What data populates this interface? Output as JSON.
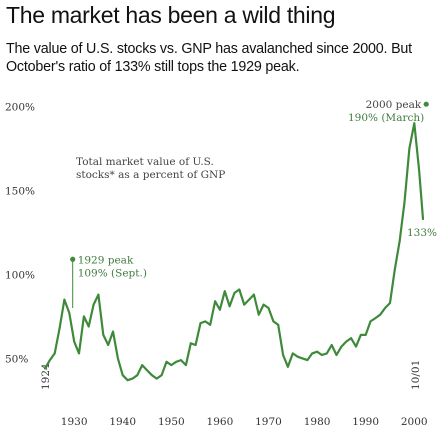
{
  "title": "The market has been a wild thing",
  "subtitle": "The value of U.S. stocks vs. GNP has avalanched since 2000. But October's ratio of 133% still tops the 1929 peak.",
  "chart_data": {
    "type": "line",
    "title": "The market has been a wild thing",
    "subtitle": "The value of U.S. stocks vs. GNP has avalanched since 2000. But October's ratio of 133% still tops the 1929 peak.",
    "xlabel": "",
    "ylabel": "",
    "xlim": [
      1924,
      2001.8
    ],
    "ylim": [
      30,
      205
    ],
    "x_ticks": [
      1930,
      1940,
      1950,
      1960,
      1970,
      1980,
      1990,
      2000
    ],
    "x_tick_labels": [
      "1930",
      "1940",
      "1950",
      "1960",
      "1970",
      "1980",
      "1990",
      "2000"
    ],
    "y_ticks": [
      50,
      100,
      150,
      200
    ],
    "y_tick_labels": [
      "50%",
      "100%",
      "150%",
      "200%"
    ],
    "grid": false,
    "legend": "none",
    "series_label": "Total market value of U.S. stocks* as a percent of GNP",
    "series": [
      {
        "color": "#3f8a3a",
        "x": [
          1924,
          1925,
          1926,
          1927,
          1928,
          1929,
          1930,
          1931,
          1932,
          1933,
          1934,
          1935,
          1936,
          1937,
          1938,
          1939,
          1940,
          1941,
          1942,
          1943,
          1944,
          1945,
          1946,
          1947,
          1948,
          1949,
          1950,
          1951,
          1952,
          1953,
          1954,
          1955,
          1956,
          1957,
          1958,
          1959,
          1960,
          1961,
          1962,
          1963,
          1964,
          1965,
          1966,
          1967,
          1968,
          1969,
          1970,
          1971,
          1972,
          1973,
          1974,
          1975,
          1976,
          1977,
          1978,
          1979,
          1980,
          1981,
          1982,
          1983,
          1984,
          1985,
          1986,
          1987,
          1988,
          1989,
          1990,
          1991,
          1992,
          1993,
          1994,
          1995,
          1996,
          1997,
          1998,
          1999,
          2000,
          2001,
          2001.8
        ],
        "values": [
          44,
          49,
          53,
          68,
          85,
          77,
          60,
          53,
          75,
          69,
          82,
          88,
          64,
          58,
          66,
          50,
          40,
          37,
          38,
          40,
          46,
          43,
          40,
          38,
          40,
          48,
          46,
          48,
          49,
          46,
          59,
          58,
          71,
          72,
          70,
          84,
          79,
          90,
          81,
          89,
          91,
          82,
          85,
          88,
          76,
          82,
          80,
          72,
          70,
          52,
          45,
          53,
          51,
          50,
          49,
          53,
          54,
          52,
          53,
          58,
          52,
          57,
          60,
          62,
          57,
          64,
          64,
          72,
          74,
          76,
          80,
          83,
          103,
          120,
          143,
          175,
          190,
          162,
          133
        ]
      }
    ],
    "annotations": [
      {
        "text": "Total market value of U.S. stocks* as a percent of GNP"
      },
      {
        "text": "1929 peak 109% (Sept.)",
        "x": 1929.7,
        "y": 109
      },
      {
        "text": "2000 peak 190% (March)",
        "x": 2000.2,
        "y": 190
      },
      {
        "text": "133%",
        "x": 2001.8,
        "y": 133
      },
      {
        "text": "1924",
        "x": 1924
      },
      {
        "text": "10/01",
        "x": 2001.8
      }
    ]
  }
}
